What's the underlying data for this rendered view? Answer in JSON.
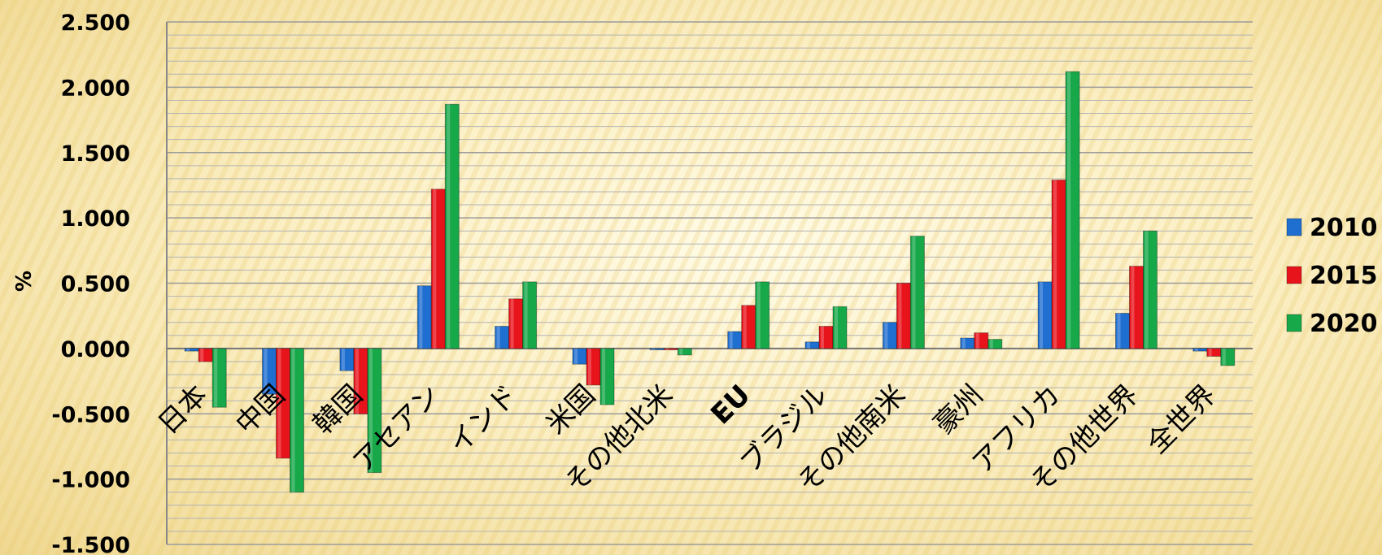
{
  "chart_data": {
    "type": "bar",
    "ylabel": "%",
    "ylim": [
      -1.5,
      2.5
    ],
    "yticks": [
      "2.500",
      "2.000",
      "1.500",
      "1.000",
      "0.500",
      "0.000",
      "-0.500",
      "-1.000",
      "-1.500"
    ],
    "grid": true,
    "legend_position": "right",
    "categories": [
      "日本",
      "中国",
      "韓国",
      "アセアン",
      "インド",
      "米国",
      "その他北米",
      "EU",
      "ブラジル",
      "その他南米",
      "豪州",
      "アフリカ",
      "その他世界",
      "全世界"
    ],
    "series": [
      {
        "name": "2010",
        "color": "#1f6fd1",
        "values": [
          -0.02,
          -0.35,
          -0.17,
          0.48,
          0.17,
          -0.12,
          -0.01,
          0.13,
          0.05,
          0.2,
          0.08,
          0.51,
          0.27,
          -0.02
        ]
      },
      {
        "name": "2015",
        "color": "#e8141c",
        "values": [
          -0.1,
          -0.84,
          -0.5,
          1.22,
          0.38,
          -0.28,
          -0.01,
          0.33,
          0.17,
          0.5,
          0.12,
          1.29,
          0.63,
          -0.06
        ]
      },
      {
        "name": "2020",
        "color": "#17a84a",
        "values": [
          -0.45,
          -1.1,
          -0.95,
          1.87,
          0.51,
          -0.43,
          -0.05,
          0.51,
          0.32,
          0.86,
          0.07,
          2.12,
          0.9,
          -0.13
        ]
      }
    ]
  }
}
